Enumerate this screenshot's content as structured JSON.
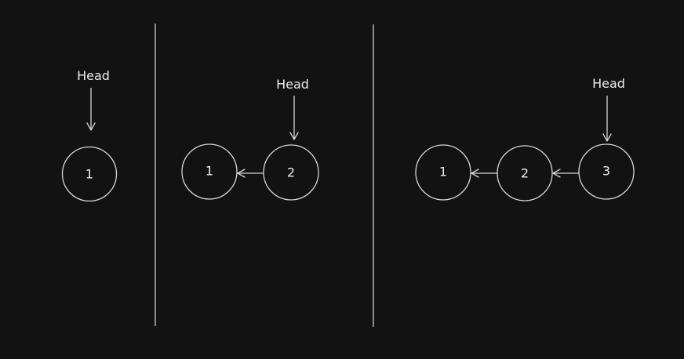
{
  "panels": [
    {
      "head_label": "Head",
      "nodes": [
        "1"
      ]
    },
    {
      "head_label": "Head",
      "nodes": [
        "1",
        "2"
      ]
    },
    {
      "head_label": "Head",
      "nodes": [
        "1",
        "2",
        "3"
      ]
    }
  ],
  "colors": {
    "background": "#121212",
    "stroke": "#d6d6d6",
    "text": "#ececec"
  }
}
